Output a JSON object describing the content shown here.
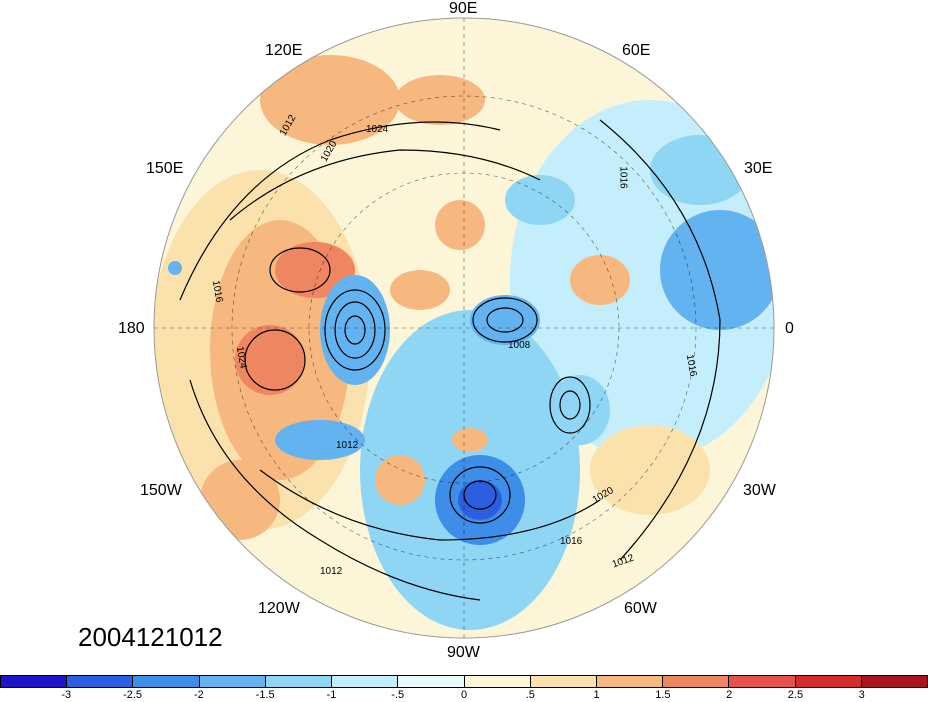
{
  "map": {
    "projection": "north-polar-stereographic",
    "longitude_labels": {
      "top": "90E",
      "upper_left": "120E",
      "upper_right": "60E",
      "left_upper": "150E",
      "right_upper": "30E",
      "left": "180",
      "right": "0",
      "left_lower": "150W",
      "right_lower": "30W",
      "lower_left": "120W",
      "lower_right": "60W",
      "bottom": "90W"
    },
    "contour_labels": [
      "1012",
      "1016",
      "1020",
      "1024",
      "1008"
    ],
    "datestamp": "2004121012"
  },
  "colorbar": {
    "colors": [
      "#1f14c8",
      "#2b5fe0",
      "#3c8ee8",
      "#63b3f0",
      "#8fd6f5",
      "#c4eefb",
      "#eafafc",
      "#fdf5d8",
      "#fbe2ac",
      "#f7b880",
      "#ee8661",
      "#e6524a",
      "#d42b2b",
      "#a8141f"
    ],
    "tick_labels": [
      "-3",
      "-2.5",
      "-2",
      "-1.5",
      "-1",
      "-.5",
      "0",
      ".5",
      "1",
      "1.5",
      "2",
      "2.5",
      "3"
    ]
  }
}
